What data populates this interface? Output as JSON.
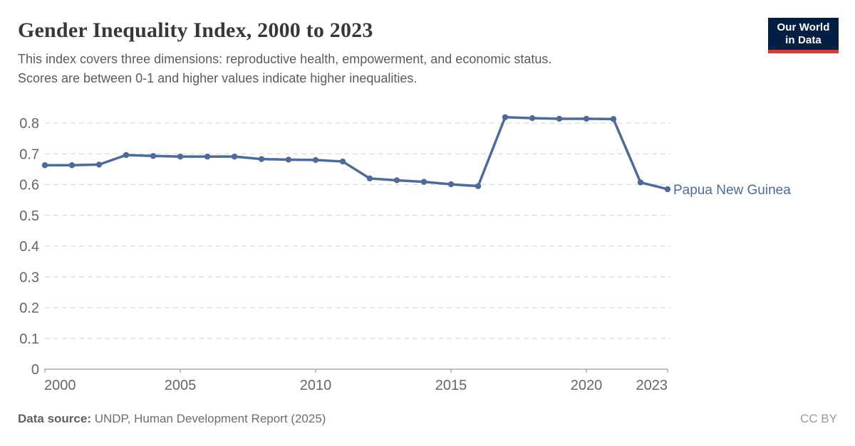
{
  "header": {
    "title": "Gender Inequality Index, 2000 to 2023",
    "subtitle_lines": [
      "This index covers three dimensions: reproductive health, empowerment, and economic status.",
      "Scores are between 0-1 and higher values indicate higher inequalities."
    ],
    "logo": {
      "line1": "Our World",
      "line2": "in Data"
    }
  },
  "chart_data": {
    "type": "line",
    "title": "Gender Inequality Index, 2000 to 2023",
    "xlabel": "",
    "ylabel": "",
    "xlim": [
      2000,
      2023
    ],
    "ylim": [
      0,
      0.85
    ],
    "xticks": [
      2000,
      2005,
      2010,
      2015,
      2020,
      2023
    ],
    "yticks": [
      0,
      0.1,
      0.2,
      0.3,
      0.4,
      0.5,
      0.6,
      0.7,
      0.8
    ],
    "grid": "horizontal-dashed",
    "legend": "end-of-line-label",
    "series": [
      {
        "name": "Papua New Guinea",
        "color": "#4C6A9C",
        "x": [
          2000,
          2001,
          2002,
          2003,
          2004,
          2005,
          2006,
          2007,
          2008,
          2009,
          2010,
          2011,
          2012,
          2013,
          2014,
          2015,
          2016,
          2017,
          2018,
          2019,
          2020,
          2021,
          2022,
          2023
        ],
        "values": [
          0.663,
          0.663,
          0.665,
          0.696,
          0.693,
          0.691,
          0.691,
          0.691,
          0.683,
          0.681,
          0.68,
          0.675,
          0.62,
          0.614,
          0.609,
          0.601,
          0.595,
          0.819,
          0.816,
          0.814,
          0.814,
          0.813,
          0.607,
          0.585
        ]
      }
    ]
  },
  "footer": {
    "source_label": "Data source:",
    "source_value": " UNDP, Human Development Report (2025)",
    "license": "CC BY"
  },
  "colors": {
    "line": "#4C6A9C",
    "grid": "#d9d9d9",
    "axis": "#999999",
    "logo_bg": "#041f43",
    "logo_red": "#dc382d"
  }
}
